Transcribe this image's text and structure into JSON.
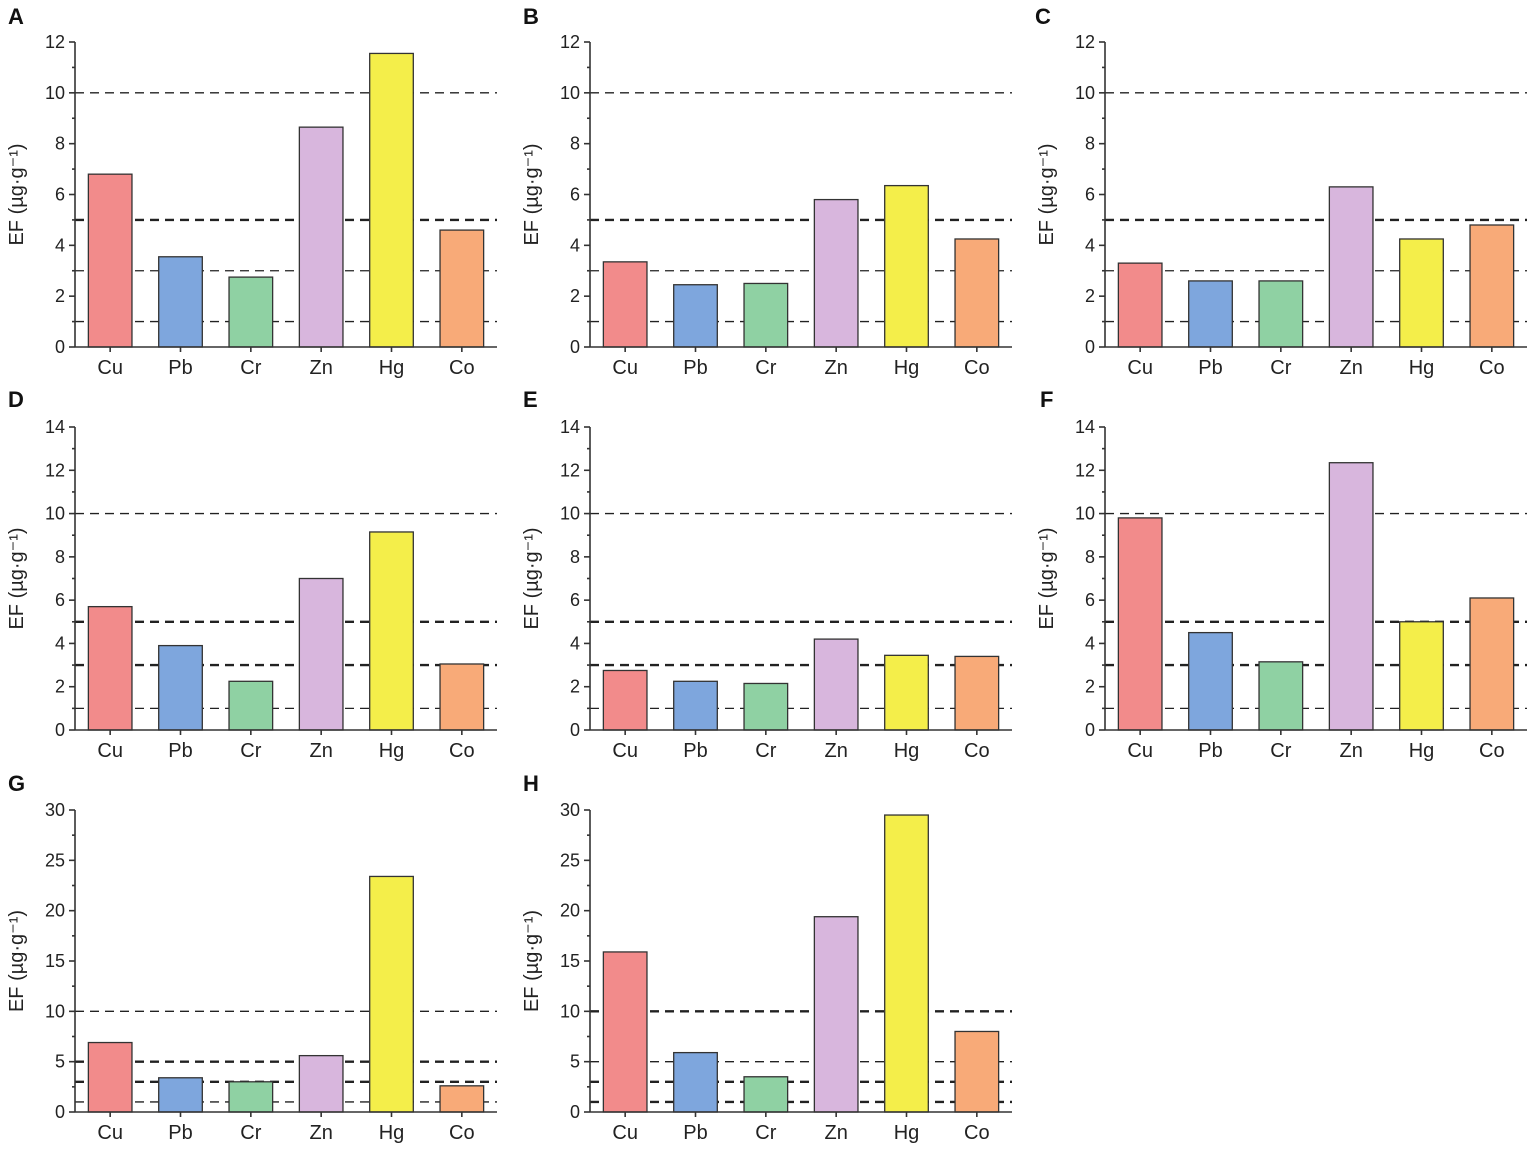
{
  "ylabel": "EF (µg·g⁻¹)",
  "colors": {
    "Cu": "#f28b8b",
    "Pb": "#7ea6dd",
    "Cr": "#8fd1a3",
    "Zn": "#d8b6dd",
    "Hg": "#f4ee4a",
    "Co": "#f8aa78"
  },
  "chart_data": [
    {
      "type": "bar",
      "panel": "A",
      "categories": [
        "Cu",
        "Pb",
        "Cr",
        "Zn",
        "Hg",
        "Co"
      ],
      "values": [
        6.8,
        3.55,
        2.75,
        8.65,
        11.55,
        4.6
      ],
      "ylim": [
        0,
        12
      ],
      "yticks": [
        0,
        2,
        4,
        6,
        8,
        10,
        12
      ],
      "reference_lines": [
        1,
        3,
        5,
        10
      ],
      "xlabel": "",
      "ylabel": "EF (µg·g⁻¹)"
    },
    {
      "type": "bar",
      "panel": "B",
      "categories": [
        "Cu",
        "Pb",
        "Cr",
        "Zn",
        "Hg",
        "Co"
      ],
      "values": [
        3.35,
        2.45,
        2.5,
        5.8,
        6.35,
        4.25
      ],
      "ylim": [
        0,
        12
      ],
      "yticks": [
        0,
        2,
        4,
        6,
        8,
        10,
        12
      ],
      "reference_lines": [
        1,
        3,
        5,
        10
      ],
      "xlabel": "",
      "ylabel": "EF (µg·g⁻¹)"
    },
    {
      "type": "bar",
      "panel": "C",
      "categories": [
        "Cu",
        "Pb",
        "Cr",
        "Zn",
        "Hg",
        "Co"
      ],
      "values": [
        3.3,
        2.6,
        2.6,
        6.3,
        4.25,
        4.8
      ],
      "ylim": [
        0,
        12
      ],
      "yticks": [
        0,
        2,
        4,
        6,
        8,
        10,
        12
      ],
      "reference_lines": [
        1,
        3,
        5,
        10
      ],
      "xlabel": "",
      "ylabel": "EF (µg·g⁻¹)"
    },
    {
      "type": "bar",
      "panel": "D",
      "categories": [
        "Cu",
        "Pb",
        "Cr",
        "Zn",
        "Hg",
        "Co"
      ],
      "values": [
        5.7,
        3.9,
        2.25,
        7.0,
        9.15,
        3.05
      ],
      "ylim": [
        0,
        14
      ],
      "yticks": [
        0,
        2,
        4,
        6,
        8,
        10,
        12,
        14
      ],
      "reference_lines": [
        1,
        3,
        5,
        10
      ],
      "xlabel": "",
      "ylabel": "EF (µg·g⁻¹)"
    },
    {
      "type": "bar",
      "panel": "E",
      "categories": [
        "Cu",
        "Pb",
        "Cr",
        "Zn",
        "Hg",
        "Co"
      ],
      "values": [
        2.75,
        2.25,
        2.15,
        4.2,
        3.45,
        3.4
      ],
      "ylim": [
        0,
        14
      ],
      "yticks": [
        0,
        2,
        4,
        6,
        8,
        10,
        12,
        14
      ],
      "reference_lines": [
        1,
        3,
        5,
        10
      ],
      "xlabel": "",
      "ylabel": "EF (µg·g⁻¹)"
    },
    {
      "type": "bar",
      "panel": "F",
      "categories": [
        "Cu",
        "Pb",
        "Cr",
        "Zn",
        "Hg",
        "Co"
      ],
      "values": [
        9.8,
        4.5,
        3.15,
        12.35,
        5.0,
        6.1
      ],
      "ylim": [
        0,
        14
      ],
      "yticks": [
        0,
        2,
        4,
        6,
        8,
        10,
        12,
        14
      ],
      "reference_lines": [
        1,
        3,
        5,
        10
      ],
      "xlabel": "",
      "ylabel": "EF (µg·g⁻¹)"
    },
    {
      "type": "bar",
      "panel": "G",
      "categories": [
        "Cu",
        "Pb",
        "Cr",
        "Zn",
        "Hg",
        "Co"
      ],
      "values": [
        6.9,
        3.4,
        3.0,
        5.6,
        23.4,
        2.6
      ],
      "ylim": [
        0,
        30
      ],
      "yticks": [
        0,
        5,
        10,
        15,
        20,
        25,
        30
      ],
      "reference_lines": [
        1,
        3,
        5,
        10
      ],
      "xlabel": "",
      "ylabel": "EF (µg·g⁻¹)"
    },
    {
      "type": "bar",
      "panel": "H",
      "categories": [
        "Cu",
        "Pb",
        "Cr",
        "Zn",
        "Hg",
        "Co"
      ],
      "values": [
        15.9,
        5.9,
        3.5,
        19.4,
        29.5,
        8.0
      ],
      "ylim": [
        0,
        30
      ],
      "yticks": [
        0,
        5,
        10,
        15,
        20,
        25,
        30
      ],
      "reference_lines": [
        1,
        3,
        5,
        10
      ],
      "xlabel": "",
      "ylabel": "EF (µg·g⁻¹)"
    }
  ]
}
